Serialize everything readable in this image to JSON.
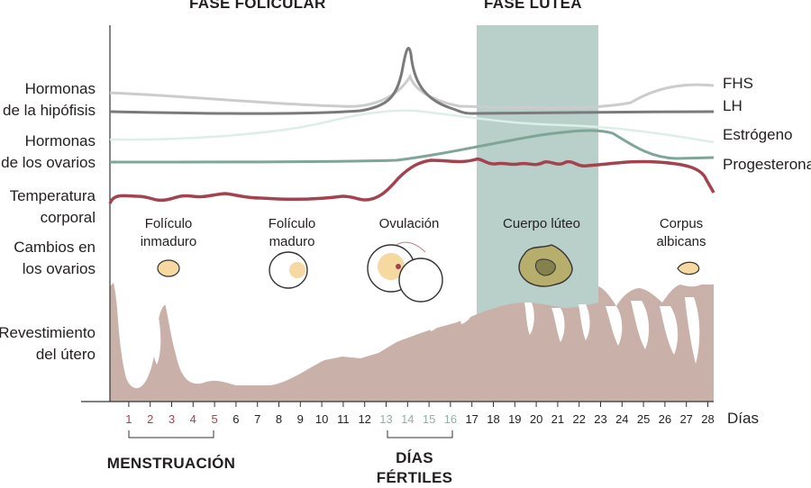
{
  "phases": {
    "follicular": "FASE FOLICULAR",
    "luteal": "FASE LÚTEA"
  },
  "left_labels": {
    "pituitary": [
      "Hormonas",
      "de la hipófisis"
    ],
    "ovarian": [
      "Hormonas",
      "de los ovarios"
    ],
    "temperature": [
      "Temperatura",
      "corporal"
    ],
    "ovary_changes": [
      "Cambios en",
      "los ovarios"
    ],
    "uterus": [
      "Revestimiento",
      "del útero"
    ]
  },
  "hormone_labels": {
    "fsh": "FHS",
    "lh": "LH",
    "estrogen": "Estrógeno",
    "progesterone": "Progesterona"
  },
  "ovary_stages": {
    "immature": [
      "Folículo",
      "inmaduro"
    ],
    "mature": [
      "Folículo",
      "maduro"
    ],
    "ovulation": [
      "Ovulación"
    ],
    "corpus_luteum": [
      "Cuerpo lúteo"
    ],
    "corpus_albicans": [
      "Corpus",
      "albicans"
    ]
  },
  "days": {
    "unit": "Días",
    "values": [
      1,
      2,
      3,
      4,
      5,
      6,
      7,
      8,
      9,
      10,
      11,
      12,
      13,
      14,
      15,
      16,
      17,
      18,
      19,
      20,
      21,
      22,
      23,
      24,
      25,
      26,
      27,
      28
    ],
    "menstruation_days": [
      1,
      2,
      3,
      4,
      5
    ],
    "fertile_days": [
      13,
      14,
      15,
      16
    ]
  },
  "bottom_labels": {
    "menstruation": "MENSTRUACIÓN",
    "fertile": [
      "DÍAS",
      "FÉRTILES"
    ]
  },
  "colors": {
    "fsh": "#cccccc",
    "lh": "#7a7a7a",
    "estrogen": "#dcefe7",
    "progesterone": "#7fa597",
    "temperature": "#a3434f",
    "luteal_band": "#b9cfc9",
    "uterus": "#c9b1aa",
    "menstruation_text": "#a3434f",
    "fertile_text": "#8fb3a6",
    "follicle": "#f5d9a0"
  }
}
